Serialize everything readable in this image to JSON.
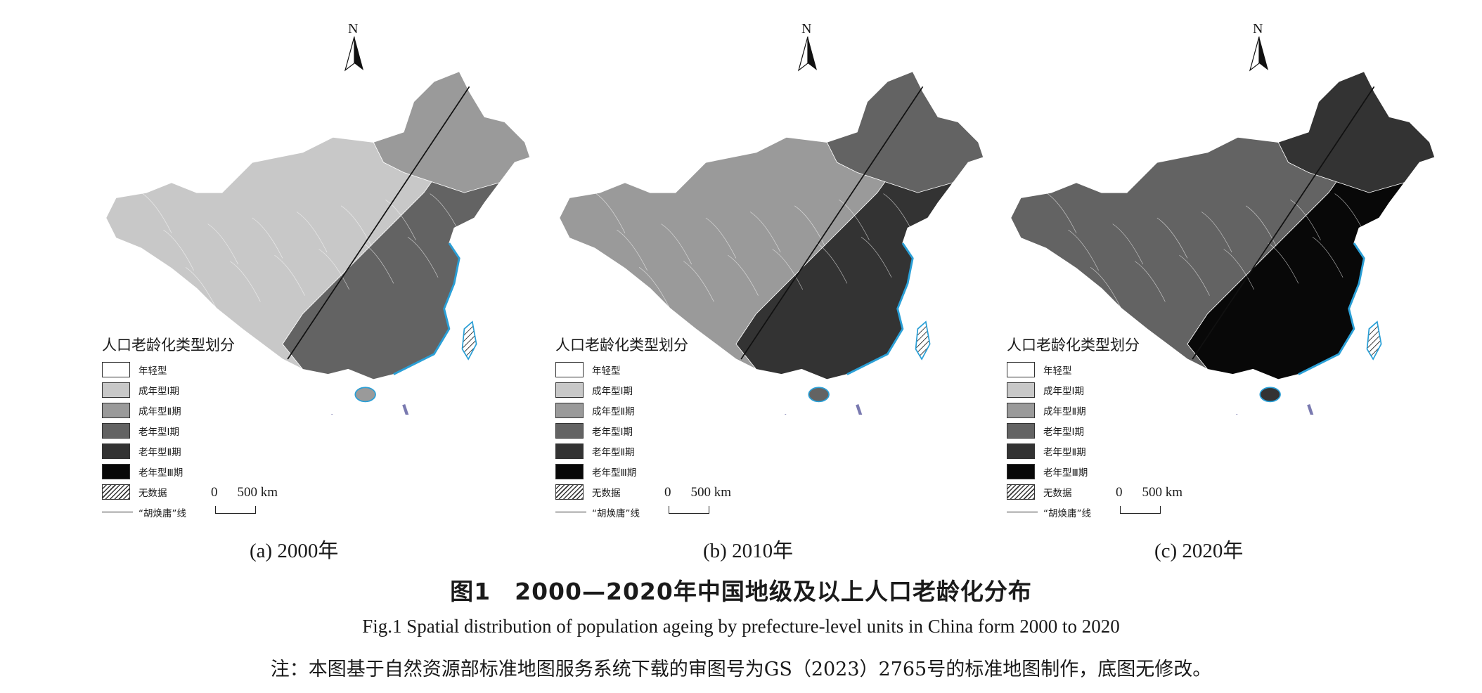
{
  "figure": {
    "title": "图1　2000—2020年中国地级及以上人口老龄化分布",
    "title_en": "Fig.1  Spatial distribution of population ageing by prefecture-level units in China form 2000 to 2020",
    "note": "注：本图基于自然资源部标准地图服务系统下载的审图号为GS（2023）2765号的标准地图制作，底图无修改。"
  },
  "north_label": "N",
  "legend": {
    "title": "人口老龄化类型划分",
    "items": [
      {
        "label": "年轻型",
        "color": "#ffffff"
      },
      {
        "label": "成年型Ⅰ期",
        "color": "#c8c8c8"
      },
      {
        "label": "成年型Ⅱ期",
        "color": "#9a9a9a"
      },
      {
        "label": "老年型Ⅰ期",
        "color": "#636363"
      },
      {
        "label": "老年型Ⅱ期",
        "color": "#333333"
      },
      {
        "label": "老年型Ⅲ期",
        "color": "#080808"
      },
      {
        "label": "无数据",
        "color": "hatch"
      }
    ],
    "line_label": "“胡焕庸”线"
  },
  "scale": {
    "zero": "0",
    "dist": "500 km"
  },
  "panels": [
    {
      "caption": "(a) 2000年",
      "west": "#c8c8c8",
      "north": "#9a9a9a",
      "east": "#636363",
      "coast": "#9a9a9a"
    },
    {
      "caption": "(b) 2010年",
      "west": "#9a9a9a",
      "north": "#636363",
      "east": "#333333",
      "coast": "#636363"
    },
    {
      "caption": "(c) 2020年",
      "west": "#636363",
      "north": "#333333",
      "east": "#080808",
      "coast": "#333333"
    }
  ]
}
